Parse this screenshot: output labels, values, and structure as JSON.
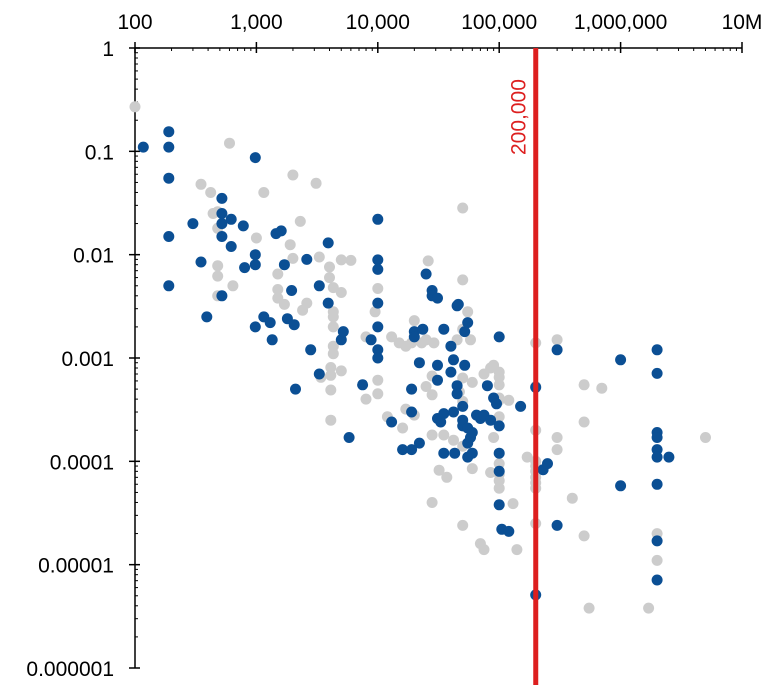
{
  "chart_data": {
    "type": "scatter",
    "title": "",
    "xlabel": "",
    "ylabel": "",
    "x_scale": "log",
    "y_scale": "log",
    "xlim": [
      100,
      10000000
    ],
    "ylim": [
      1e-06,
      1
    ],
    "x_axis_position": "top",
    "grid": false,
    "legend": "none",
    "x_ticks": [
      {
        "value": 100,
        "label": "100"
      },
      {
        "value": 1000,
        "label": "1,000"
      },
      {
        "value": 10000,
        "label": "10,000"
      },
      {
        "value": 100000,
        "label": "100,000"
      },
      {
        "value": 1000000,
        "label": "1,000,000"
      },
      {
        "value": 10000000,
        "label": "10M"
      }
    ],
    "y_ticks": [
      {
        "value": 1,
        "label": "1"
      },
      {
        "value": 0.1,
        "label": "0.1"
      },
      {
        "value": 0.01,
        "label": "0.01"
      },
      {
        "value": 0.001,
        "label": "0.001"
      },
      {
        "value": 0.0001,
        "label": "0.0001"
      },
      {
        "value": 1e-05,
        "label": "0.00001"
      },
      {
        "value": 1e-06,
        "label": "0.000001"
      }
    ],
    "reference_line": {
      "x": 200000,
      "label": "200,000",
      "color": "#dd1f1f"
    },
    "series": [
      {
        "color": "#0b4f94",
        "points": [
          [
            117,
            0.11
          ],
          [
            190,
            0.155
          ],
          [
            190,
            0.11
          ],
          [
            190,
            0.055
          ],
          [
            190,
            0.015
          ],
          [
            190,
            0.005
          ],
          [
            300,
            0.02
          ],
          [
            350,
            0.0085
          ],
          [
            390,
            0.0025
          ],
          [
            520,
            0.035
          ],
          [
            520,
            0.025
          ],
          [
            520,
            0.02
          ],
          [
            520,
            0.015
          ],
          [
            520,
            0.004
          ],
          [
            620,
            0.022
          ],
          [
            620,
            0.012
          ],
          [
            780,
            0.019
          ],
          [
            800,
            0.0075
          ],
          [
            980,
            0.087
          ],
          [
            980,
            0.01
          ],
          [
            980,
            0.008
          ],
          [
            980,
            0.002
          ],
          [
            1150,
            0.0025
          ],
          [
            1300,
            0.0022
          ],
          [
            1350,
            0.0015
          ],
          [
            1450,
            0.016
          ],
          [
            1600,
            0.017
          ],
          [
            1700,
            0.008
          ],
          [
            1800,
            0.0024
          ],
          [
            1950,
            0.0045
          ],
          [
            2050,
            0.0021
          ],
          [
            2100,
            0.0005
          ],
          [
            2600,
            0.009
          ],
          [
            2800,
            0.0012
          ],
          [
            3300,
            0.005
          ],
          [
            3300,
            0.0007
          ],
          [
            3900,
            0.013
          ],
          [
            3900,
            0.0034
          ],
          [
            5000,
            0.0015
          ],
          [
            5200,
            0.0018
          ],
          [
            5800,
            0.00017
          ],
          [
            7500,
            0.00055
          ],
          [
            8800,
            0.0015
          ],
          [
            10000,
            0.022
          ],
          [
            10000,
            0.0089
          ],
          [
            10000,
            0.0072
          ],
          [
            10000,
            0.0034
          ],
          [
            10000,
            0.002
          ],
          [
            10000,
            0.0012
          ],
          [
            10000,
            0.001
          ],
          [
            13000,
            0.00024
          ],
          [
            16000,
            0.00013
          ],
          [
            19000,
            0.00013
          ],
          [
            19000,
            0.0005
          ],
          [
            19000,
            0.0003
          ],
          [
            20000,
            0.0018
          ],
          [
            20000,
            0.0016
          ],
          [
            22000,
            0.0009
          ],
          [
            22000,
            0.00015
          ],
          [
            23500,
            0.0019
          ],
          [
            25000,
            0.0065
          ],
          [
            28000,
            0.0045
          ],
          [
            28000,
            0.004
          ],
          [
            31000,
            0.0038
          ],
          [
            31000,
            0.00085
          ],
          [
            31000,
            0.00061
          ],
          [
            31000,
            0.00026
          ],
          [
            33000,
            0.00024
          ],
          [
            35000,
            0.00012
          ],
          [
            35000,
            0.0019
          ],
          [
            35000,
            0.00029
          ],
          [
            40000,
            0.0013
          ],
          [
            40000,
            0.00073
          ],
          [
            42000,
            0.00096
          ],
          [
            42000,
            0.0003
          ],
          [
            43000,
            0.00012
          ],
          [
            45000,
            0.00054
          ],
          [
            45000,
            0.00045
          ],
          [
            45000,
            0.0032
          ],
          [
            46000,
            0.0033
          ],
          [
            50000,
            0.00022
          ],
          [
            50000,
            0.00034
          ],
          [
            50000,
            0.00025
          ],
          [
            52000,
            0.0018
          ],
          [
            52000,
            0.00085
          ],
          [
            55000,
            0.0022
          ],
          [
            55000,
            0.00021
          ],
          [
            55000,
            0.00015
          ],
          [
            55000,
            0.00011
          ],
          [
            58000,
            0.00017
          ],
          [
            60000,
            0.00019
          ],
          [
            60000,
            0.00012
          ],
          [
            65000,
            0.00028
          ],
          [
            70000,
            0.00026
          ],
          [
            75000,
            0.00028
          ],
          [
            80000,
            0.00054
          ],
          [
            85000,
            0.00025
          ],
          [
            90000,
            0.00041
          ],
          [
            95000,
            0.00036
          ],
          [
            100000,
            0.0016
          ],
          [
            100000,
            0.00012
          ],
          [
            100000,
            3.8e-05
          ],
          [
            100000,
            8e-05
          ],
          [
            100000,
            0.00022
          ],
          [
            105000,
            2.2e-05
          ],
          [
            120000,
            2.1e-05
          ],
          [
            150000,
            0.00034
          ],
          [
            200000,
            0.00052
          ],
          [
            200000,
            5.1e-06
          ],
          [
            230000,
            8.3e-05
          ],
          [
            250000,
            9.5e-05
          ],
          [
            300000,
            0.0012
          ],
          [
            300000,
            2.4e-05
          ],
          [
            1000000,
            0.00096
          ],
          [
            1000000,
            5.8e-05
          ],
          [
            2000000,
            0.0012
          ],
          [
            2000000,
            0.00071
          ],
          [
            2000000,
            0.00019
          ],
          [
            2000000,
            0.00017
          ],
          [
            2000000,
            0.00013
          ],
          [
            2000000,
            0.00011
          ],
          [
            2000000,
            6e-05
          ],
          [
            2000000,
            1.7e-05
          ],
          [
            2000000,
            7.1e-06
          ],
          [
            2500000,
            0.00011
          ]
        ]
      },
      {
        "color": "#cccccc",
        "points": [
          [
            100,
            0.27
          ],
          [
            350,
            0.048
          ],
          [
            420,
            0.04
          ],
          [
            440,
            0.025
          ],
          [
            480,
            0.018
          ],
          [
            480,
            0.0078
          ],
          [
            480,
            0.0062
          ],
          [
            480,
            0.004
          ],
          [
            480,
            0.026
          ],
          [
            600,
            0.12
          ],
          [
            640,
            0.005
          ],
          [
            1000,
            0.0145
          ],
          [
            1150,
            0.04
          ],
          [
            1500,
            0.0065
          ],
          [
            1500,
            0.0038
          ],
          [
            1500,
            0.0046
          ],
          [
            1700,
            0.0033
          ],
          [
            1900,
            0.0125
          ],
          [
            2000,
            0.059
          ],
          [
            2000,
            0.0092
          ],
          [
            2300,
            0.021
          ],
          [
            2400,
            0.0029
          ],
          [
            2600,
            0.0034
          ],
          [
            3100,
            0.049
          ],
          [
            3300,
            0.0095
          ],
          [
            3400,
            0.00065
          ],
          [
            4000,
            0.0076
          ],
          [
            4000,
            0.006
          ],
          [
            4100,
            0.00081
          ],
          [
            4100,
            0.00068
          ],
          [
            4100,
            0.00049
          ],
          [
            4100,
            0.00025
          ],
          [
            4300,
            0.0048
          ],
          [
            4300,
            0.0028
          ],
          [
            4300,
            0.0025
          ],
          [
            4300,
            0.002
          ],
          [
            4300,
            0.0013
          ],
          [
            4300,
            0.0011
          ],
          [
            5000,
            0.0089
          ],
          [
            5000,
            0.0043
          ],
          [
            5000,
            0.00075
          ],
          [
            6000,
            0.0088
          ],
          [
            8000,
            0.0016
          ],
          [
            8000,
            0.0004
          ],
          [
            9500,
            0.0028
          ],
          [
            10000,
            0.0047
          ],
          [
            10000,
            0.00045
          ],
          [
            10000,
            0.00061
          ],
          [
            12000,
            0.00027
          ],
          [
            13000,
            0.0016
          ],
          [
            15000,
            0.0014
          ],
          [
            16000,
            0.00021
          ],
          [
            17000,
            0.0013
          ],
          [
            17000,
            0.00032
          ],
          [
            19000,
            0.0014
          ],
          [
            19000,
            0.0005
          ],
          [
            20000,
            0.0023
          ],
          [
            20000,
            0.00028
          ],
          [
            23000,
            0.0014
          ],
          [
            25000,
            0.0015
          ],
          [
            25000,
            0.00053
          ],
          [
            26000,
            0.0087
          ],
          [
            28000,
            0.00067
          ],
          [
            28000,
            0.00044
          ],
          [
            28000,
            0.00018
          ],
          [
            28000,
            4e-05
          ],
          [
            29000,
            0.0014
          ],
          [
            32000,
            8.2e-05
          ],
          [
            35000,
            0.00018
          ],
          [
            37000,
            7e-05
          ],
          [
            42000,
            0.00016
          ],
          [
            45000,
            0.0015
          ],
          [
            47000,
            0.00047
          ],
          [
            50000,
            0.0283
          ],
          [
            50000,
            0.0057
          ],
          [
            50000,
            0.0019
          ],
          [
            50000,
            0.00064
          ],
          [
            50000,
            0.00038
          ],
          [
            50000,
            0.00014
          ],
          [
            50000,
            2.4e-05
          ],
          [
            55000,
            0.0028
          ],
          [
            58000,
            0.0015
          ],
          [
            60000,
            0.00058
          ],
          [
            60000,
            8.5e-05
          ],
          [
            70000,
            1.6e-05
          ],
          [
            75000,
            1.4e-05
          ],
          [
            75000,
            0.0007
          ],
          [
            85000,
            7.8e-05
          ],
          [
            85000,
            0.0008
          ],
          [
            90000,
            0.00085
          ],
          [
            90000,
            0.00017
          ],
          [
            100000,
            0.00073
          ],
          [
            100000,
            0.00065
          ],
          [
            100000,
            0.00055
          ],
          [
            100000,
            0.00041
          ],
          [
            100000,
            0.00039
          ],
          [
            100000,
            0.00027
          ],
          [
            100000,
            9.5e-05
          ],
          [
            100000,
            7.5e-05
          ],
          [
            100000,
            6.5e-05
          ],
          [
            100000,
            5.5e-05
          ],
          [
            120000,
            0.00039
          ],
          [
            130000,
            3.9e-05
          ],
          [
            140000,
            1.4e-05
          ],
          [
            170000,
            0.00011
          ],
          [
            200000,
            0.0014
          ],
          [
            200000,
            0.00053
          ],
          [
            200000,
            0.0002
          ],
          [
            200000,
            0.0001
          ],
          [
            200000,
            9e-05
          ],
          [
            200000,
            8e-05
          ],
          [
            200000,
            7e-05
          ],
          [
            200000,
            6.2e-05
          ],
          [
            200000,
            5.5e-05
          ],
          [
            200000,
            2.5e-05
          ],
          [
            300000,
            0.0015
          ],
          [
            300000,
            0.00017
          ],
          [
            300000,
            0.00013
          ],
          [
            400000,
            4.4e-05
          ],
          [
            500000,
            0.00055
          ],
          [
            500000,
            0.00024
          ],
          [
            500000,
            1.9e-05
          ],
          [
            550000,
            3.8e-06
          ],
          [
            700000,
            0.00051
          ],
          [
            1700000,
            3.8e-06
          ],
          [
            2000000,
            2e-05
          ],
          [
            2000000,
            1.1e-05
          ],
          [
            5000000,
            0.00017
          ]
        ]
      }
    ]
  }
}
